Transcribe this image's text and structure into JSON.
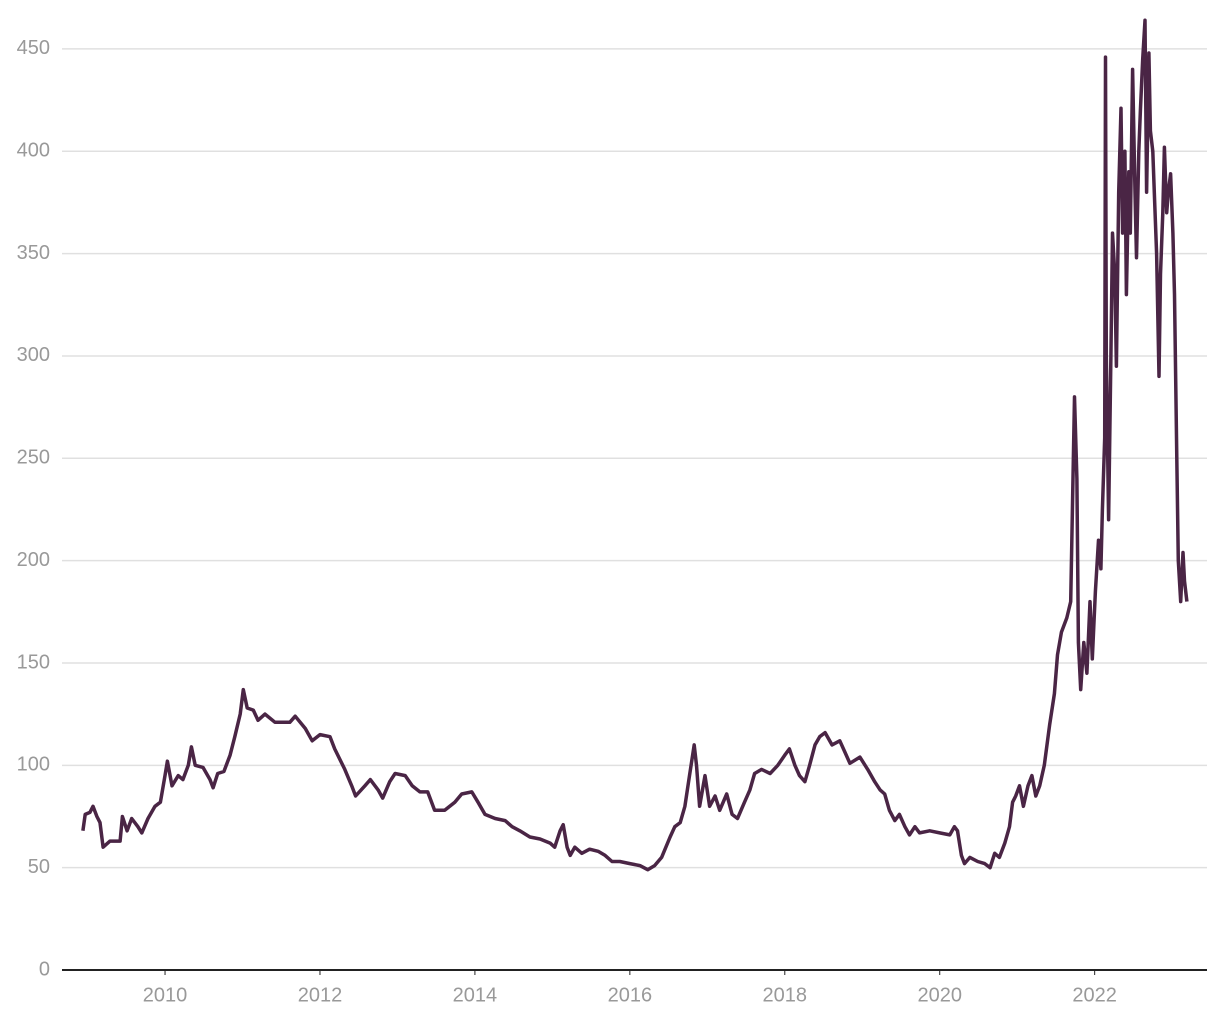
{
  "chart_data": {
    "type": "line",
    "x": [
      2008.94,
      2008.97,
      2009.03,
      2009.07,
      2009.12,
      2009.16,
      2009.2,
      2009.29,
      2009.42,
      2009.45,
      2009.51,
      2009.57,
      2009.65,
      2009.7,
      2009.78,
      2009.87,
      2009.94,
      2010.0,
      2010.03,
      2010.09,
      2010.17,
      2010.23,
      2010.3,
      2010.34,
      2010.39,
      2010.49,
      2010.58,
      2010.62,
      2010.68,
      2010.76,
      2010.84,
      2010.9,
      2010.97,
      2011.01,
      2011.06,
      2011.14,
      2011.2,
      2011.29,
      2011.42,
      2011.61,
      2011.68,
      2011.81,
      2011.9,
      2012.0,
      2012.13,
      2012.19,
      2012.32,
      2012.41,
      2012.46,
      2012.58,
      2012.65,
      2012.75,
      2012.81,
      2012.9,
      2012.97,
      2013.1,
      2013.19,
      2013.29,
      2013.39,
      2013.48,
      2013.61,
      2013.74,
      2013.83,
      2013.96,
      2014.04,
      2014.13,
      2014.26,
      2014.39,
      2014.48,
      2014.58,
      2014.71,
      2014.84,
      2014.97,
      2015.03,
      2015.1,
      2015.14,
      2015.19,
      2015.23,
      2015.29,
      2015.38,
      2015.48,
      2015.59,
      2015.68,
      2015.77,
      2015.87,
      2016.0,
      2016.13,
      2016.23,
      2016.32,
      2016.41,
      2016.52,
      2016.58,
      2016.65,
      2016.71,
      2016.77,
      2016.83,
      2016.86,
      2016.9,
      2016.97,
      2017.03,
      2017.1,
      2017.16,
      2017.25,
      2017.32,
      2017.39,
      2017.48,
      2017.55,
      2017.61,
      2017.7,
      2017.81,
      2017.91,
      2018.0,
      2018.06,
      2018.13,
      2018.19,
      2018.26,
      2018.32,
      2018.39,
      2018.45,
      2018.52,
      2018.61,
      2018.71,
      2018.77,
      2018.84,
      2018.97,
      2019.07,
      2019.16,
      2019.23,
      2019.29,
      2019.35,
      2019.42,
      2019.48,
      2019.55,
      2019.61,
      2019.68,
      2019.74,
      2019.87,
      2020.0,
      2020.13,
      2020.19,
      2020.23,
      2020.28,
      2020.32,
      2020.39,
      2020.49,
      2020.58,
      2020.65,
      2020.71,
      2020.77,
      2020.84,
      2020.9,
      2020.94,
      2020.98,
      2021.03,
      2021.08,
      2021.14,
      2021.19,
      2021.24,
      2021.29,
      2021.35,
      2021.42,
      2021.48,
      2021.52,
      2021.57,
      2021.64,
      2021.69,
      2021.74,
      2021.77,
      2021.79,
      2021.82,
      2021.86,
      2021.9,
      2021.94,
      2021.97,
      2022.01,
      2022.05,
      2022.08,
      2022.1,
      2022.13,
      2022.14,
      2022.15,
      2022.18,
      2022.21,
      2022.23,
      2022.26,
      2022.28,
      2022.31,
      2022.34,
      2022.36,
      2022.39,
      2022.41,
      2022.44,
      2022.46,
      2022.49,
      2022.52,
      2022.54,
      2022.57,
      2022.59,
      2022.62,
      2022.65,
      2022.67,
      2022.7,
      2022.72,
      2022.75,
      2022.77,
      2022.8,
      2022.83,
      2022.85,
      2022.88,
      2022.9,
      2022.93,
      2022.95,
      2022.98,
      2023.01,
      2023.03,
      2023.06,
      2023.08,
      2023.11,
      2023.14,
      2023.16,
      2023.19
    ],
    "values": [
      68,
      76,
      77,
      80,
      75,
      72,
      60,
      63,
      63,
      75,
      68,
      74,
      70,
      67,
      74,
      80,
      82,
      95,
      102,
      90,
      95,
      93,
      100,
      109,
      100,
      99,
      93,
      89,
      96,
      97,
      105,
      114,
      125,
      137,
      128,
      127,
      122,
      125,
      121,
      121,
      124,
      118,
      112,
      115,
      114,
      108,
      98,
      90,
      85,
      90,
      93,
      88,
      84,
      92,
      96,
      95,
      90,
      87,
      87,
      78,
      78,
      82,
      86,
      87,
      82,
      76,
      74,
      73,
      70,
      68,
      65,
      64,
      62,
      60,
      68,
      71,
      60,
      56,
      60,
      57,
      59,
      58,
      56,
      53,
      53,
      52,
      51,
      49,
      51,
      55,
      65,
      70,
      72,
      80,
      95,
      110,
      100,
      80,
      95,
      80,
      85,
      78,
      86,
      76,
      74,
      82,
      88,
      96,
      98,
      96,
      100,
      105,
      108,
      100,
      95,
      92,
      100,
      110,
      114,
      116,
      110,
      112,
      107,
      101,
      104,
      98,
      92,
      88,
      86,
      78,
      73,
      76,
      70,
      66,
      70,
      67,
      68,
      67,
      66,
      70,
      68,
      56,
      52,
      55,
      53,
      52,
      50,
      57,
      55,
      62,
      70,
      82,
      85,
      90,
      80,
      90,
      95,
      85,
      90,
      100,
      120,
      135,
      154,
      165,
      172,
      180,
      280,
      240,
      160,
      137,
      160,
      145,
      180,
      152,
      185,
      210,
      196,
      225,
      260,
      446,
      300,
      220,
      300,
      360,
      340,
      295,
      380,
      421,
      360,
      400,
      330,
      390,
      360,
      440,
      380,
      348,
      400,
      420,
      445,
      464,
      380,
      448,
      410,
      400,
      380,
      350,
      290,
      340,
      370,
      402,
      370,
      380,
      389,
      360,
      330,
      250,
      200,
      180,
      204,
      190,
      180
    ],
    "color": "#4a2545",
    "xlim": [
      2008.67,
      2023.45
    ],
    "xticks": [
      2010,
      2012,
      2014,
      2016,
      2018,
      2020,
      2022
    ],
    "ylim": [
      0,
      470
    ],
    "yticks": [
      0,
      50,
      100,
      150,
      200,
      250,
      300,
      350,
      400,
      450
    ],
    "grid": true
  }
}
